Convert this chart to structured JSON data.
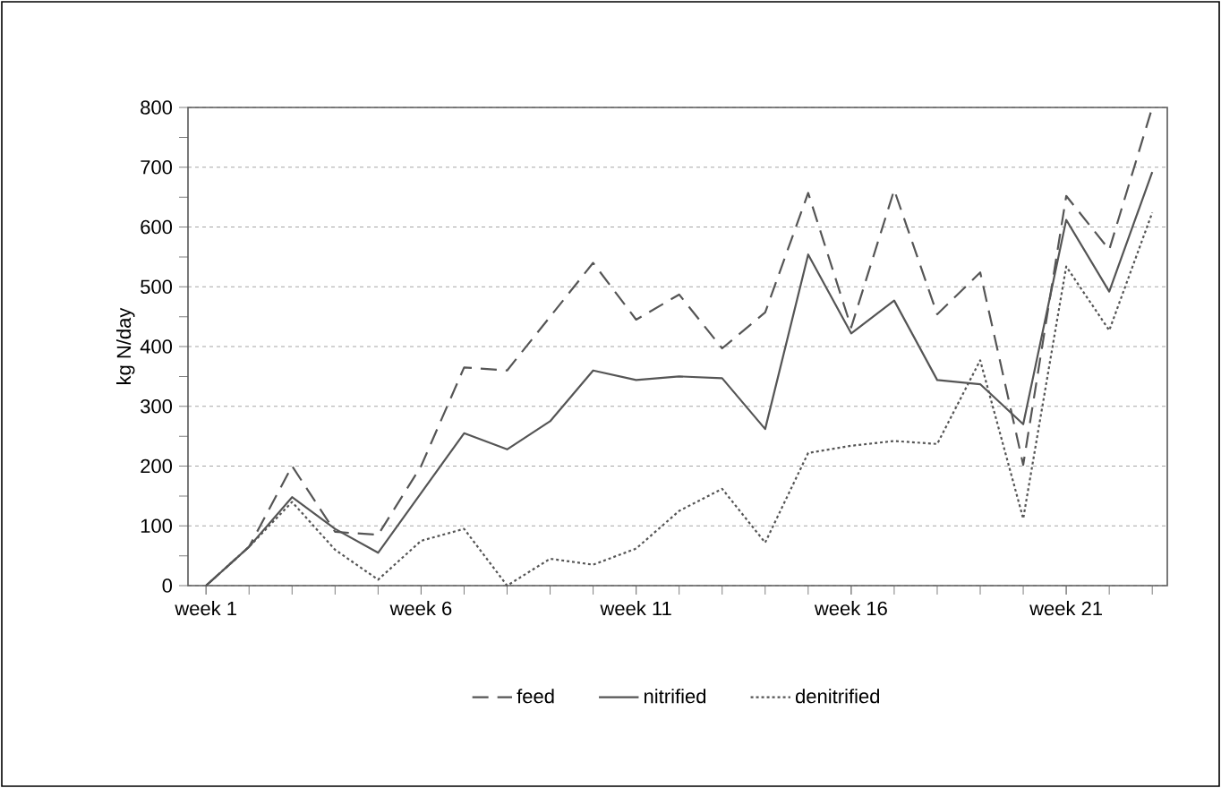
{
  "chart_data": {
    "type": "line",
    "ylabel": "kg N/day",
    "categories": [
      "week 1",
      null,
      null,
      null,
      null,
      "week 6",
      null,
      null,
      null,
      null,
      "week 11",
      null,
      null,
      null,
      null,
      "week 16",
      null,
      null,
      null,
      null,
      "week 21",
      null,
      null
    ],
    "series": [
      {
        "name": "feed",
        "color": "#555555",
        "line_style": "dashed",
        "values": [
          0,
          65,
          200,
          90,
          85,
          200,
          365,
          360,
          450,
          540,
          445,
          487,
          397,
          457,
          657,
          432,
          662,
          454,
          524,
          202,
          652,
          562,
          800
        ]
      },
      {
        "name": "nitrified",
        "color": "#555555",
        "line_style": "solid",
        "values": [
          0,
          65,
          148,
          95,
          55,
          155,
          255,
          228,
          275,
          360,
          344,
          350,
          347,
          262,
          554,
          422,
          477,
          344,
          337,
          270,
          612,
          492,
          692
        ]
      },
      {
        "name": "denitrified",
        "color": "#555555",
        "line_style": "dotted",
        "values": [
          0,
          65,
          140,
          60,
          10,
          75,
          95,
          0,
          45,
          35,
          62,
          125,
          162,
          72,
          222,
          234,
          242,
          237,
          377,
          112,
          534,
          427,
          624
        ]
      }
    ],
    "ylim": [
      0,
      800
    ],
    "yticks": [
      0,
      100,
      200,
      300,
      400,
      500,
      600,
      700,
      800
    ],
    "grid": "y",
    "legend": "bottom"
  }
}
